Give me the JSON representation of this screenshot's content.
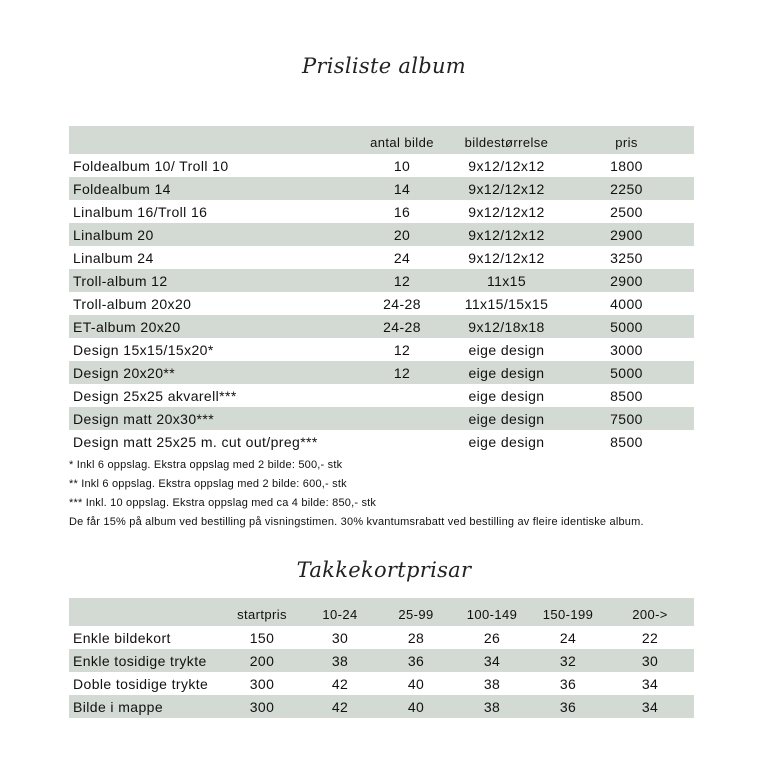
{
  "album": {
    "title": "Prisliste album",
    "headers": [
      "",
      "antal bilde",
      "bildestørrelse",
      "pris"
    ],
    "rows": [
      [
        "Foldealbum 10/ Troll 10",
        "10",
        "9x12/12x12",
        "1800"
      ],
      [
        "Foldealbum 14",
        "14",
        "9x12/12x12",
        "2250"
      ],
      [
        "Linalbum 16/Troll 16",
        "16",
        "9x12/12x12",
        "2500"
      ],
      [
        "Linalbum 20",
        "20",
        "9x12/12x12",
        "2900"
      ],
      [
        "Linalbum 24",
        "24",
        "9x12/12x12",
        "3250"
      ],
      [
        "Troll-album 12",
        "12",
        "11x15",
        "2900"
      ],
      [
        "Troll-album 20x20",
        "24-28",
        "11x15/15x15",
        "4000"
      ],
      [
        "ET-album 20x20",
        "24-28",
        "9x12/18x18",
        "5000"
      ],
      [
        "Design 15x15/15x20*",
        "12",
        "eige design",
        "3000"
      ],
      [
        "Design 20x20**",
        "12",
        "eige design",
        "5000"
      ],
      [
        "Design 25x25 akvarell***",
        "",
        "eige design",
        "8500"
      ],
      [
        "Design matt 20x30***",
        "",
        "eige design",
        "7500"
      ],
      [
        "Design matt 25x25 m. cut out/preg***",
        "",
        "eige design",
        "8500"
      ]
    ],
    "notes": [
      "* Inkl 6 oppslag. Ekstra oppslag med 2 bilde: 500,- stk",
      "** Inkl 6 oppslag. Ekstra oppslag med 2 bilde: 600,- stk",
      "*** Inkl. 10 oppslag. Ekstra oppslag med ca 4 bilde: 850,- stk",
      "De får 15% på album ved bestilling på visningstimen. 30% kvantumsrabatt ved bestilling av fleire identiske album."
    ]
  },
  "cards": {
    "title": "Takkekortprisar",
    "headers": [
      "",
      "startpris",
      "10-24",
      "25-99",
      "100-149",
      "150-199",
      "200->"
    ],
    "rows": [
      [
        "Enkle bildekort",
        "150",
        "30",
        "28",
        "26",
        "24",
        "22"
      ],
      [
        "Enkle tosidige trykte",
        "200",
        "38",
        "36",
        "34",
        "32",
        "30"
      ],
      [
        "Doble tosidige trykte",
        "300",
        "42",
        "40",
        "38",
        "36",
        "34"
      ],
      [
        "Bilde i mappe",
        "300",
        "42",
        "40",
        "38",
        "36",
        "34"
      ]
    ]
  },
  "colors": {
    "row_stripe": "#d3d9d3"
  }
}
